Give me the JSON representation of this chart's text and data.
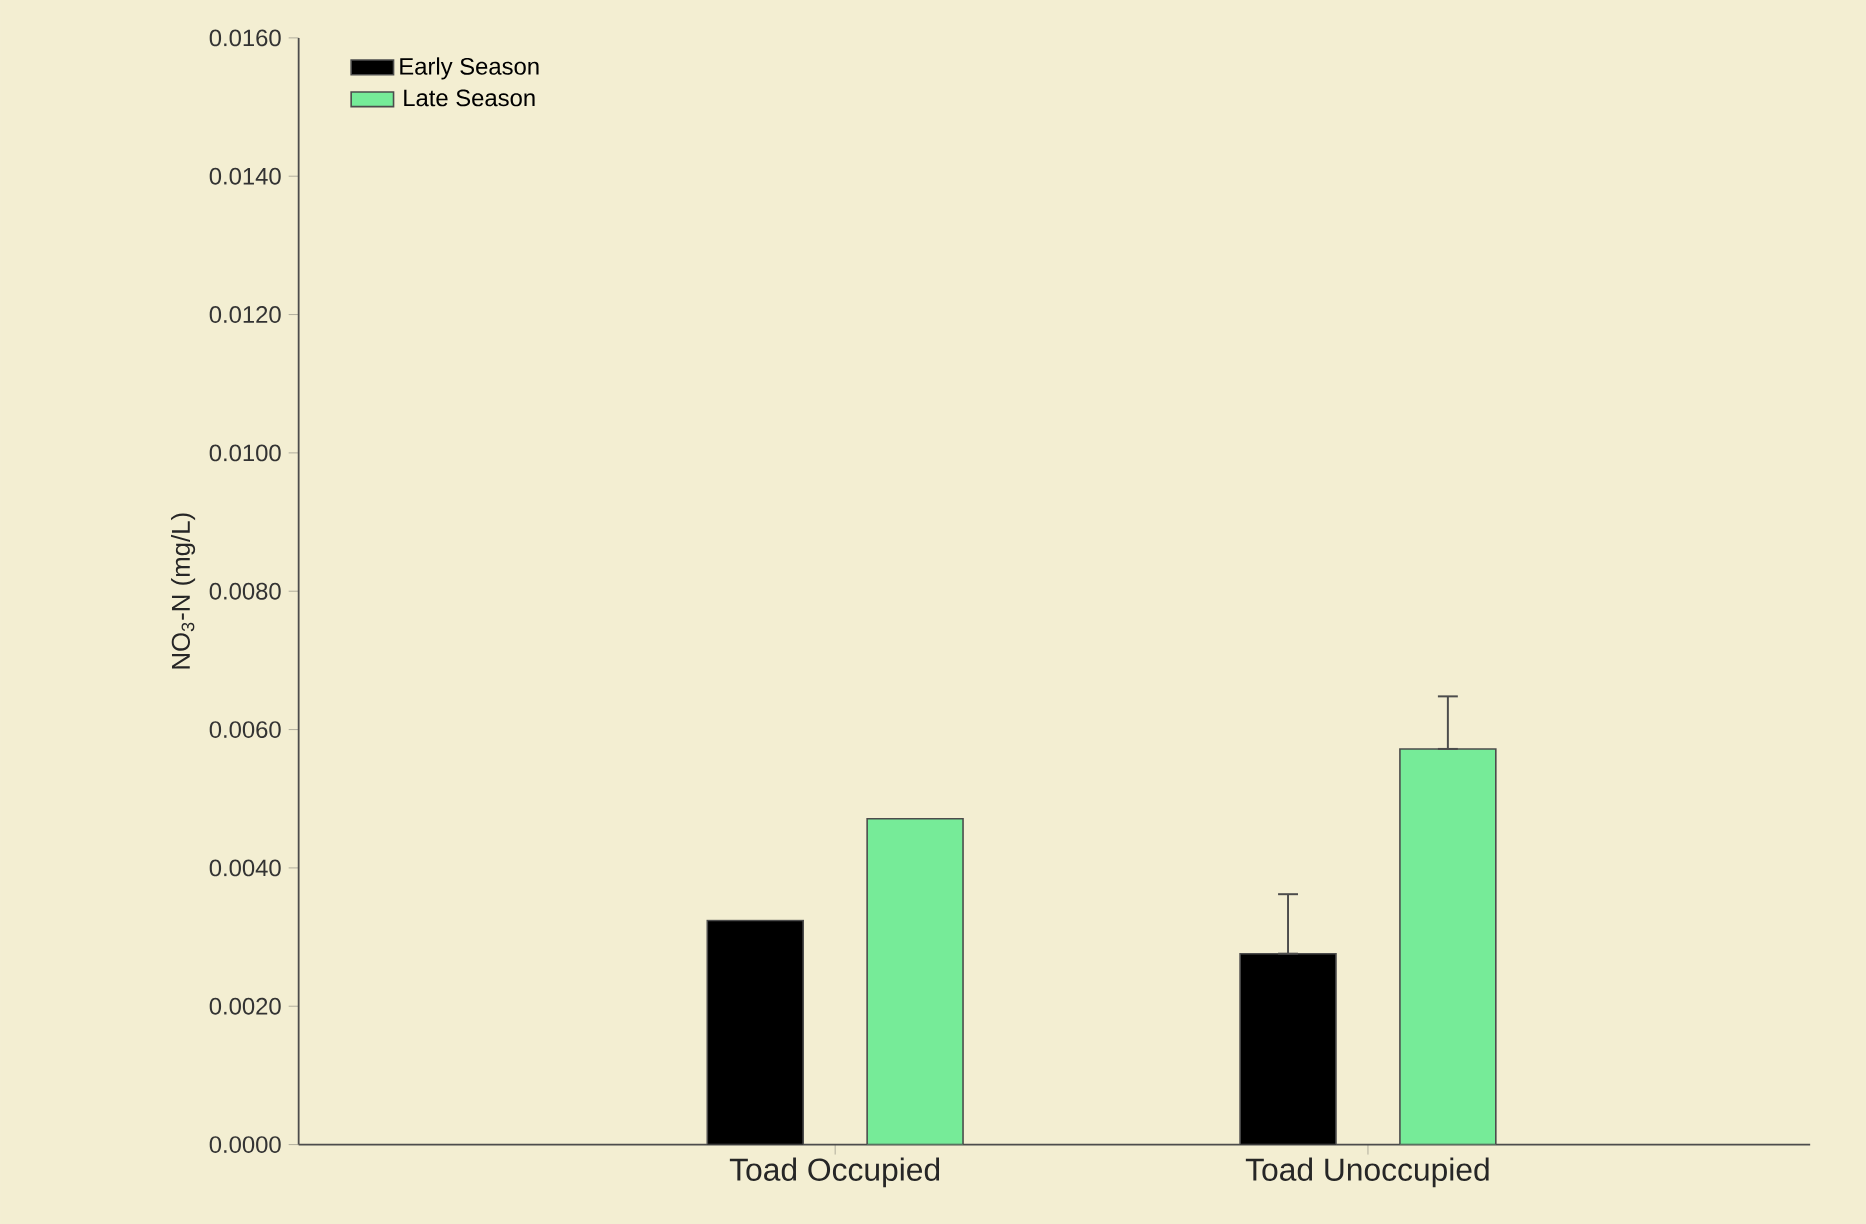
{
  "chart_data": {
    "type": "bar",
    "ylabel": "NO$_{3}$-N (mg/L)",
    "categories": [
      "Toad Occupied",
      "Toad Unoccupied"
    ],
    "series": [
      {
        "name": "Early Season",
        "color": "#000000",
        "values": [
          0.00324,
          0.00276
        ],
        "errors": [
          null,
          [
            0.00276,
            0.00362
          ]
        ]
      },
      {
        "name": "Late Season",
        "color": "#76eb98",
        "values": [
          0.00471,
          0.00572
        ],
        "errors": [
          null,
          [
            0.00572,
            0.00648
          ]
        ]
      }
    ],
    "ylim": [
      0,
      0.016
    ],
    "yticks": [
      {
        "value": 0,
        "label": "0.0000"
      },
      {
        "value": 0.002,
        "label": "0.0020"
      },
      {
        "value": 0.004,
        "label": "0.0040"
      },
      {
        "value": 0.006,
        "label": "0.0060"
      },
      {
        "value": 0.008,
        "label": "0.0080"
      },
      {
        "value": 0.01,
        "label": "0.0100"
      },
      {
        "value": 0.012,
        "label": "0.0120"
      },
      {
        "value": 0.014,
        "label": "0.0140"
      },
      {
        "value": 0.016,
        "label": "0.0160"
      }
    ],
    "legend": "top left",
    "grid": false
  }
}
